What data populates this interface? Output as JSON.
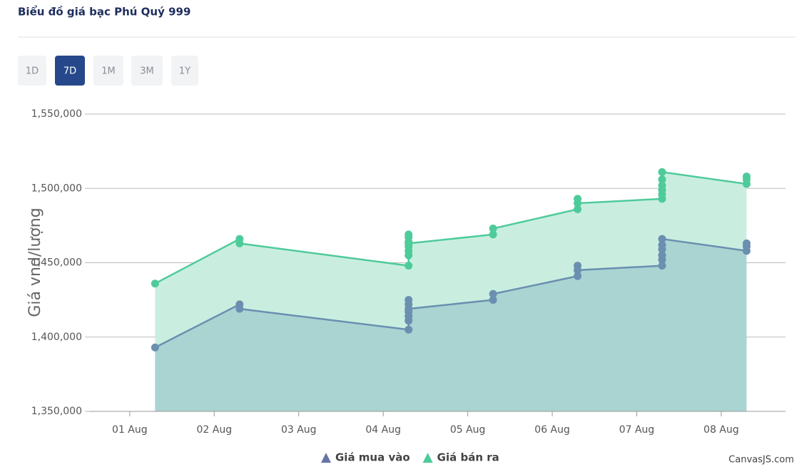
{
  "header": {
    "title": "Biểu đồ giá bạc Phú Quý 999",
    "range_buttons": [
      "1D",
      "7D",
      "1M",
      "3M",
      "1Y"
    ]
  },
  "chart_data": {
    "type": "area",
    "y_title": "Giá vnd/lượng",
    "grid": true,
    "xlim": [
      0.52,
      8.76
    ],
    "xticks": [
      {
        "value": 1,
        "label": "01 Aug"
      },
      {
        "value": 2,
        "label": "02 Aug"
      },
      {
        "value": 3,
        "label": "03 Aug"
      },
      {
        "value": 4,
        "label": "04 Aug"
      },
      {
        "value": 5,
        "label": "05 Aug"
      },
      {
        "value": 6,
        "label": "06 Aug"
      },
      {
        "value": 7,
        "label": "07 Aug"
      },
      {
        "value": 8,
        "label": "08 Aug"
      }
    ],
    "ylim": [
      1350000,
      1550000
    ],
    "yticks": [
      {
        "value": 1350000,
        "label": "1,350,000"
      },
      {
        "value": 1400000,
        "label": "1,400,000"
      },
      {
        "value": 1450000,
        "label": "1,450,000"
      },
      {
        "value": 1500000,
        "label": "1,500,000"
      },
      {
        "value": 1550000,
        "label": "1,550,000"
      }
    ],
    "series": [
      {
        "name": "Giá bán ra",
        "color": "#4ecb9a",
        "fill": "#c9eee0",
        "x": [
          1.3,
          2.3,
          2.3,
          4.3,
          4.3,
          4.3,
          4.3,
          4.3,
          4.3,
          4.3,
          4.3,
          5.3,
          5.3,
          6.3,
          6.3,
          6.3,
          7.3,
          7.3,
          7.3,
          7.3,
          7.3,
          7.3,
          8.3,
          8.3,
          8.3
        ],
        "values": [
          1436000,
          1466000,
          1463000,
          1448000,
          1455000,
          1458000,
          1461000,
          1464000,
          1467000,
          1469000,
          1463000,
          1469000,
          1473000,
          1486000,
          1493000,
          1490000,
          1493000,
          1496000,
          1499000,
          1502000,
          1506000,
          1511000,
          1503000,
          1506000,
          1508000
        ]
      },
      {
        "name": "Giá mua vào",
        "color": "#6b8fb0",
        "legend_color": "#6674a6",
        "fill": "#a9d4d2",
        "x": [
          1.3,
          2.3,
          2.3,
          4.3,
          4.3,
          4.3,
          4.3,
          4.3,
          4.3,
          4.3,
          5.3,
          5.3,
          6.3,
          6.3,
          6.3,
          7.3,
          7.3,
          7.3,
          7.3,
          7.3,
          7.3,
          8.3,
          8.3,
          8.3
        ],
        "values": [
          1393000,
          1422000,
          1419000,
          1405000,
          1411000,
          1414000,
          1417000,
          1422000,
          1425000,
          1419000,
          1425000,
          1429000,
          1441000,
          1448000,
          1445000,
          1448000,
          1452000,
          1455000,
          1459000,
          1462000,
          1466000,
          1458000,
          1461000,
          1463000
        ]
      }
    ],
    "legend_order": [
      1,
      0
    ],
    "credit": "CanvasJS.com"
  }
}
